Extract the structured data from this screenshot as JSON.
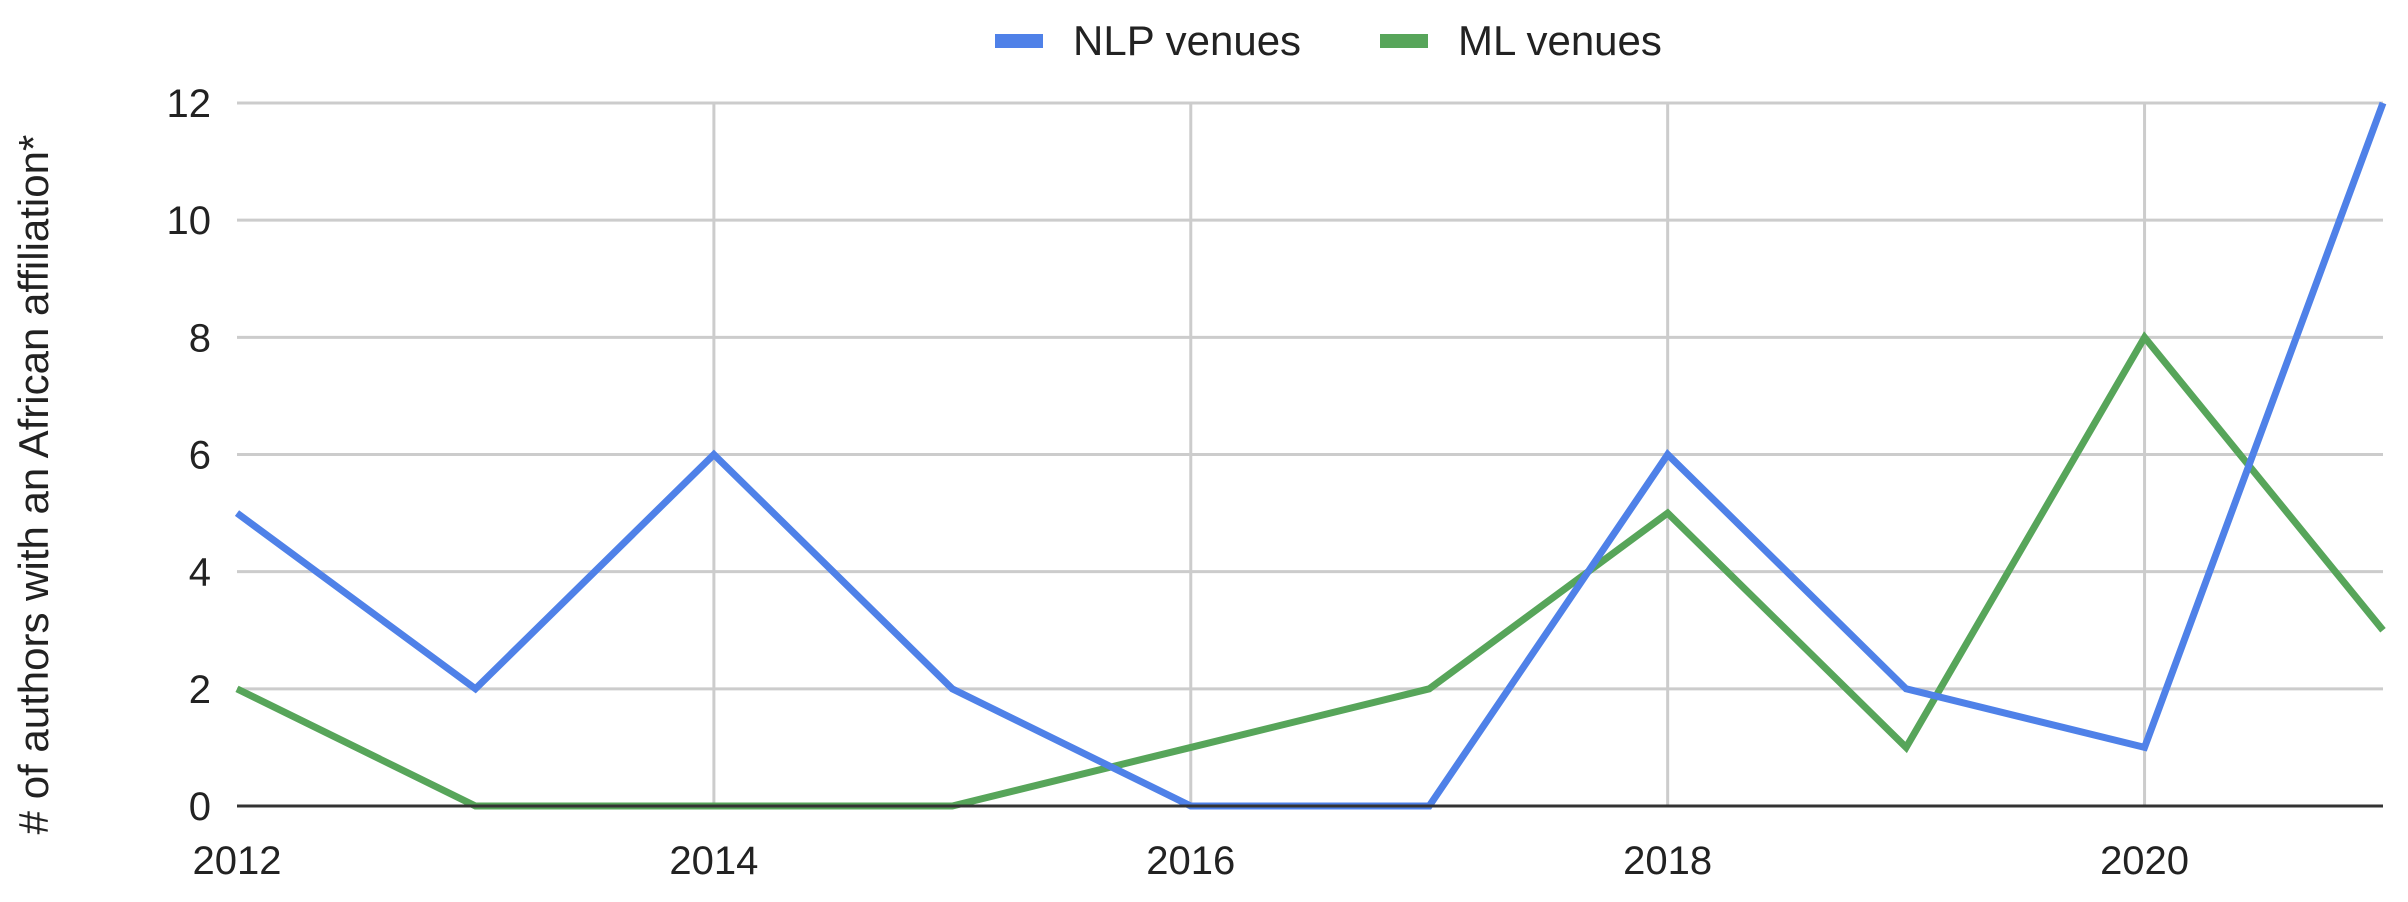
{
  "chart_data": {
    "type": "line",
    "x": [
      2012,
      2013,
      2014,
      2015,
      2016,
      2017,
      2018,
      2019,
      2020,
      2021
    ],
    "xticks": [
      "2012",
      "2014",
      "2016",
      "2018",
      "2020"
    ],
    "xlim": [
      2012,
      2021
    ],
    "ylim": [
      0,
      12
    ],
    "yticks": [
      "0",
      "2",
      "4",
      "6",
      "8",
      "10",
      "12"
    ],
    "ylabel": "# of authors with an African affiliation*",
    "xlabel": "",
    "title": "",
    "grid": true,
    "legend_position": "top",
    "series": [
      {
        "name": "NLP venues",
        "color": "#4f81e8",
        "values": [
          5,
          2,
          6,
          2,
          0,
          0,
          6,
          2,
          1,
          12
        ]
      },
      {
        "name": "ML venues",
        "color": "#57a55a",
        "values": [
          2,
          0,
          0,
          0,
          1,
          2,
          5,
          1,
          8,
          3
        ]
      }
    ]
  }
}
